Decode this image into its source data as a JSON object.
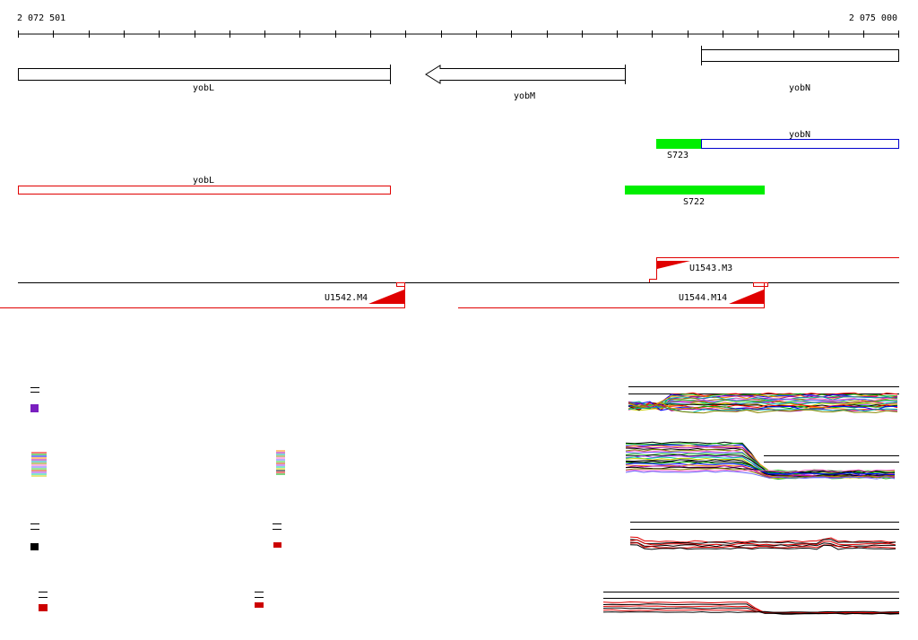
{
  "ruler": {
    "start_label": "2 072 501",
    "end_label": "2 075 000"
  },
  "genes": {
    "yobL": "yobL",
    "yobM": "yobM",
    "yobN": "yobN"
  },
  "features": {
    "yobN_blue": "yobN",
    "s723": "S723",
    "yobL_red": "yobL",
    "s722": "S722"
  },
  "transcripts": {
    "u1543": "U1543.M3",
    "u1542": "U1542.M4",
    "u1544": "U1544.M14"
  },
  "colors": {
    "ruler": "#000000",
    "gene_outline": "#000000",
    "feature_red": "#e00000",
    "feature_blue": "#0000cc",
    "segment_green": "#00ee00",
    "transcript_red": "#e00000"
  }
}
